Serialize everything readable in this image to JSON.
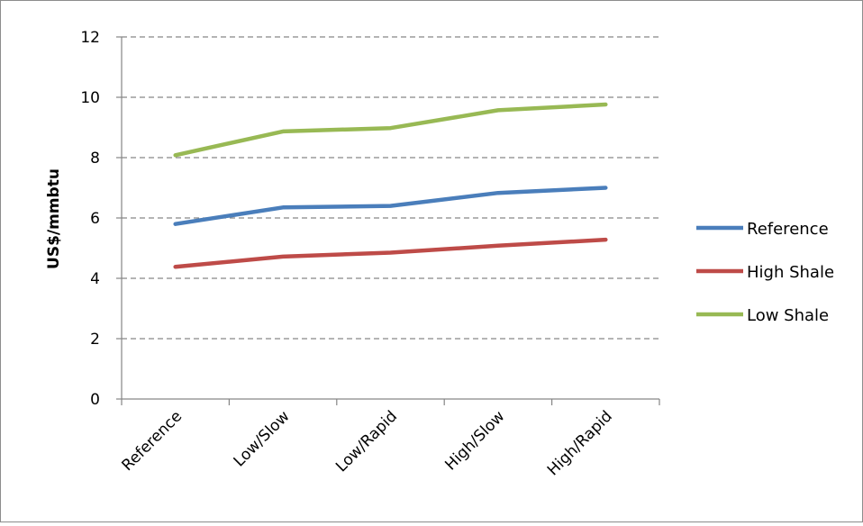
{
  "chart_data": {
    "type": "line",
    "categories": [
      "Reference",
      "Low/Slow",
      "Low/Rapid",
      "High/Slow",
      "High/Rapid"
    ],
    "series": [
      {
        "name": "Reference",
        "color": "#4a7ebb",
        "values": [
          5.8,
          6.35,
          6.4,
          6.83,
          7.0
        ]
      },
      {
        "name": "High Shale",
        "color": "#be4b48",
        "values": [
          4.38,
          4.72,
          4.85,
          5.08,
          5.28
        ]
      },
      {
        "name": "Low Shale",
        "color": "#98b954",
        "values": [
          8.08,
          8.87,
          8.98,
          9.57,
          9.76
        ]
      }
    ],
    "ylabel": "US$/mmbtu",
    "xlabel": "",
    "ylim": [
      0,
      12
    ],
    "yticks": [
      0,
      2,
      4,
      6,
      8,
      10,
      12
    ],
    "grid": "horizontal dashed",
    "legend": "right"
  }
}
